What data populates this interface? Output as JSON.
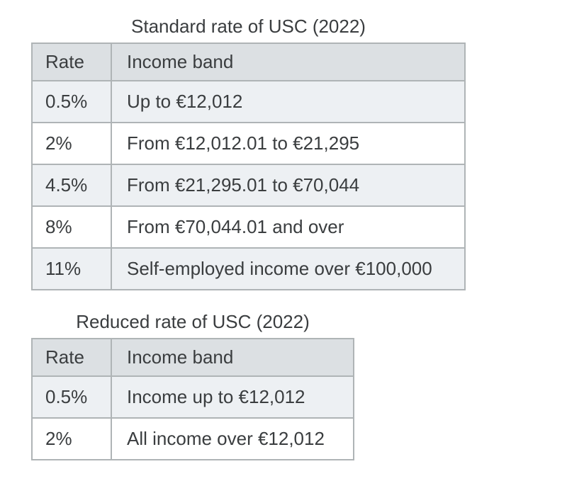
{
  "colors": {
    "page_background": "#ffffff",
    "header_row_background": "#dce0e3",
    "alt_row_background": "#edf0f3",
    "row_background": "#ffffff",
    "table_border": "#afb4b6",
    "text": "#3a3d3f"
  },
  "tables": [
    {
      "title": "Standard rate of USC (2022)",
      "columns": [
        "Rate",
        "Income band"
      ],
      "rows": [
        [
          "0.5%",
          "Up to €12,012"
        ],
        [
          "2%",
          "From €12,012.01 to €21,295"
        ],
        [
          "4.5%",
          "From €21,295.01 to €70,044"
        ],
        [
          "8%",
          "From €70,044.01 and over"
        ],
        [
          "11%",
          "Self-employed income over €100,000"
        ]
      ]
    },
    {
      "title": "Reduced rate of USC (2022)",
      "columns": [
        "Rate",
        "Income band"
      ],
      "rows": [
        [
          "0.5%",
          "Income up to €12,012"
        ],
        [
          "2%",
          "All income over €12,012"
        ]
      ]
    }
  ]
}
